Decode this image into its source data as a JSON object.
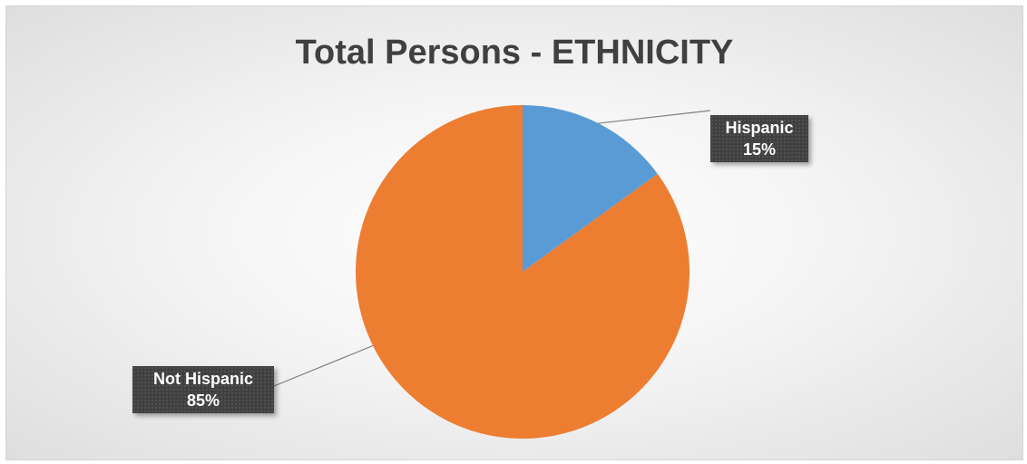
{
  "chart_data": {
    "type": "pie",
    "title": "Total Persons - ETHNICITY",
    "slices": [
      {
        "name": "Hispanic",
        "value": 15,
        "label": "15%",
        "color": "#5B9BD5"
      },
      {
        "name": "Not Hispanic",
        "value": 85,
        "label": "85%",
        "color": "#ED7D31"
      }
    ],
    "start_angle_deg": 0,
    "direction": "clockwise",
    "data_labels": "callout-outside",
    "legend": "none"
  }
}
